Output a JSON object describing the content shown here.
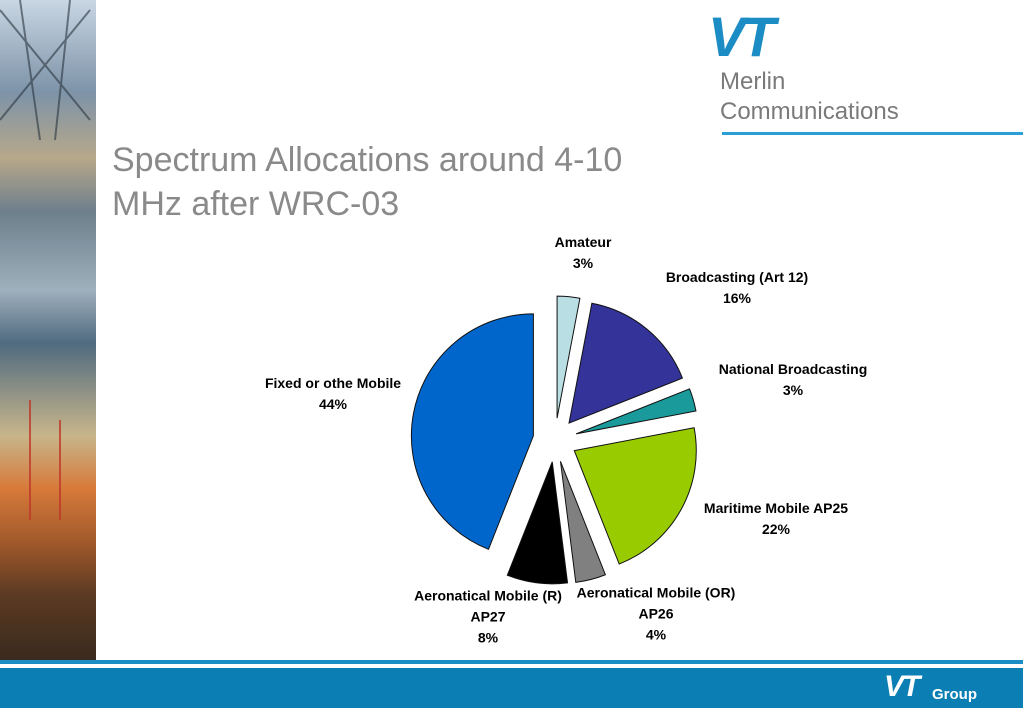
{
  "logo": {
    "mark": "VT",
    "line1": "Merlin",
    "line2": "Communications"
  },
  "footer": {
    "mark": "VT",
    "group": "Group"
  },
  "chart_data": {
    "type": "pie",
    "title": "Spectrum Allocations around 4-10 MHz after WRC-03",
    "categories": [
      "Amateur",
      "Broadcasting (Art 12)",
      "National Broadcasting",
      "Maritime Mobile AP25",
      "Aeronatical Mobile (OR) AP26",
      "Aeronatical Mobile (R) AP27",
      "Fixed or othe Mobile"
    ],
    "values": [
      3,
      16,
      3,
      22,
      4,
      8,
      44
    ],
    "value_labels": [
      "3%",
      "16%",
      "3%",
      "22%",
      "4%",
      "8%",
      "44%"
    ],
    "colors": [
      "#b9dfe4",
      "#333399",
      "#1a9a9a",
      "#99cc00",
      "#808080",
      "#000000",
      "#0066cc"
    ]
  }
}
